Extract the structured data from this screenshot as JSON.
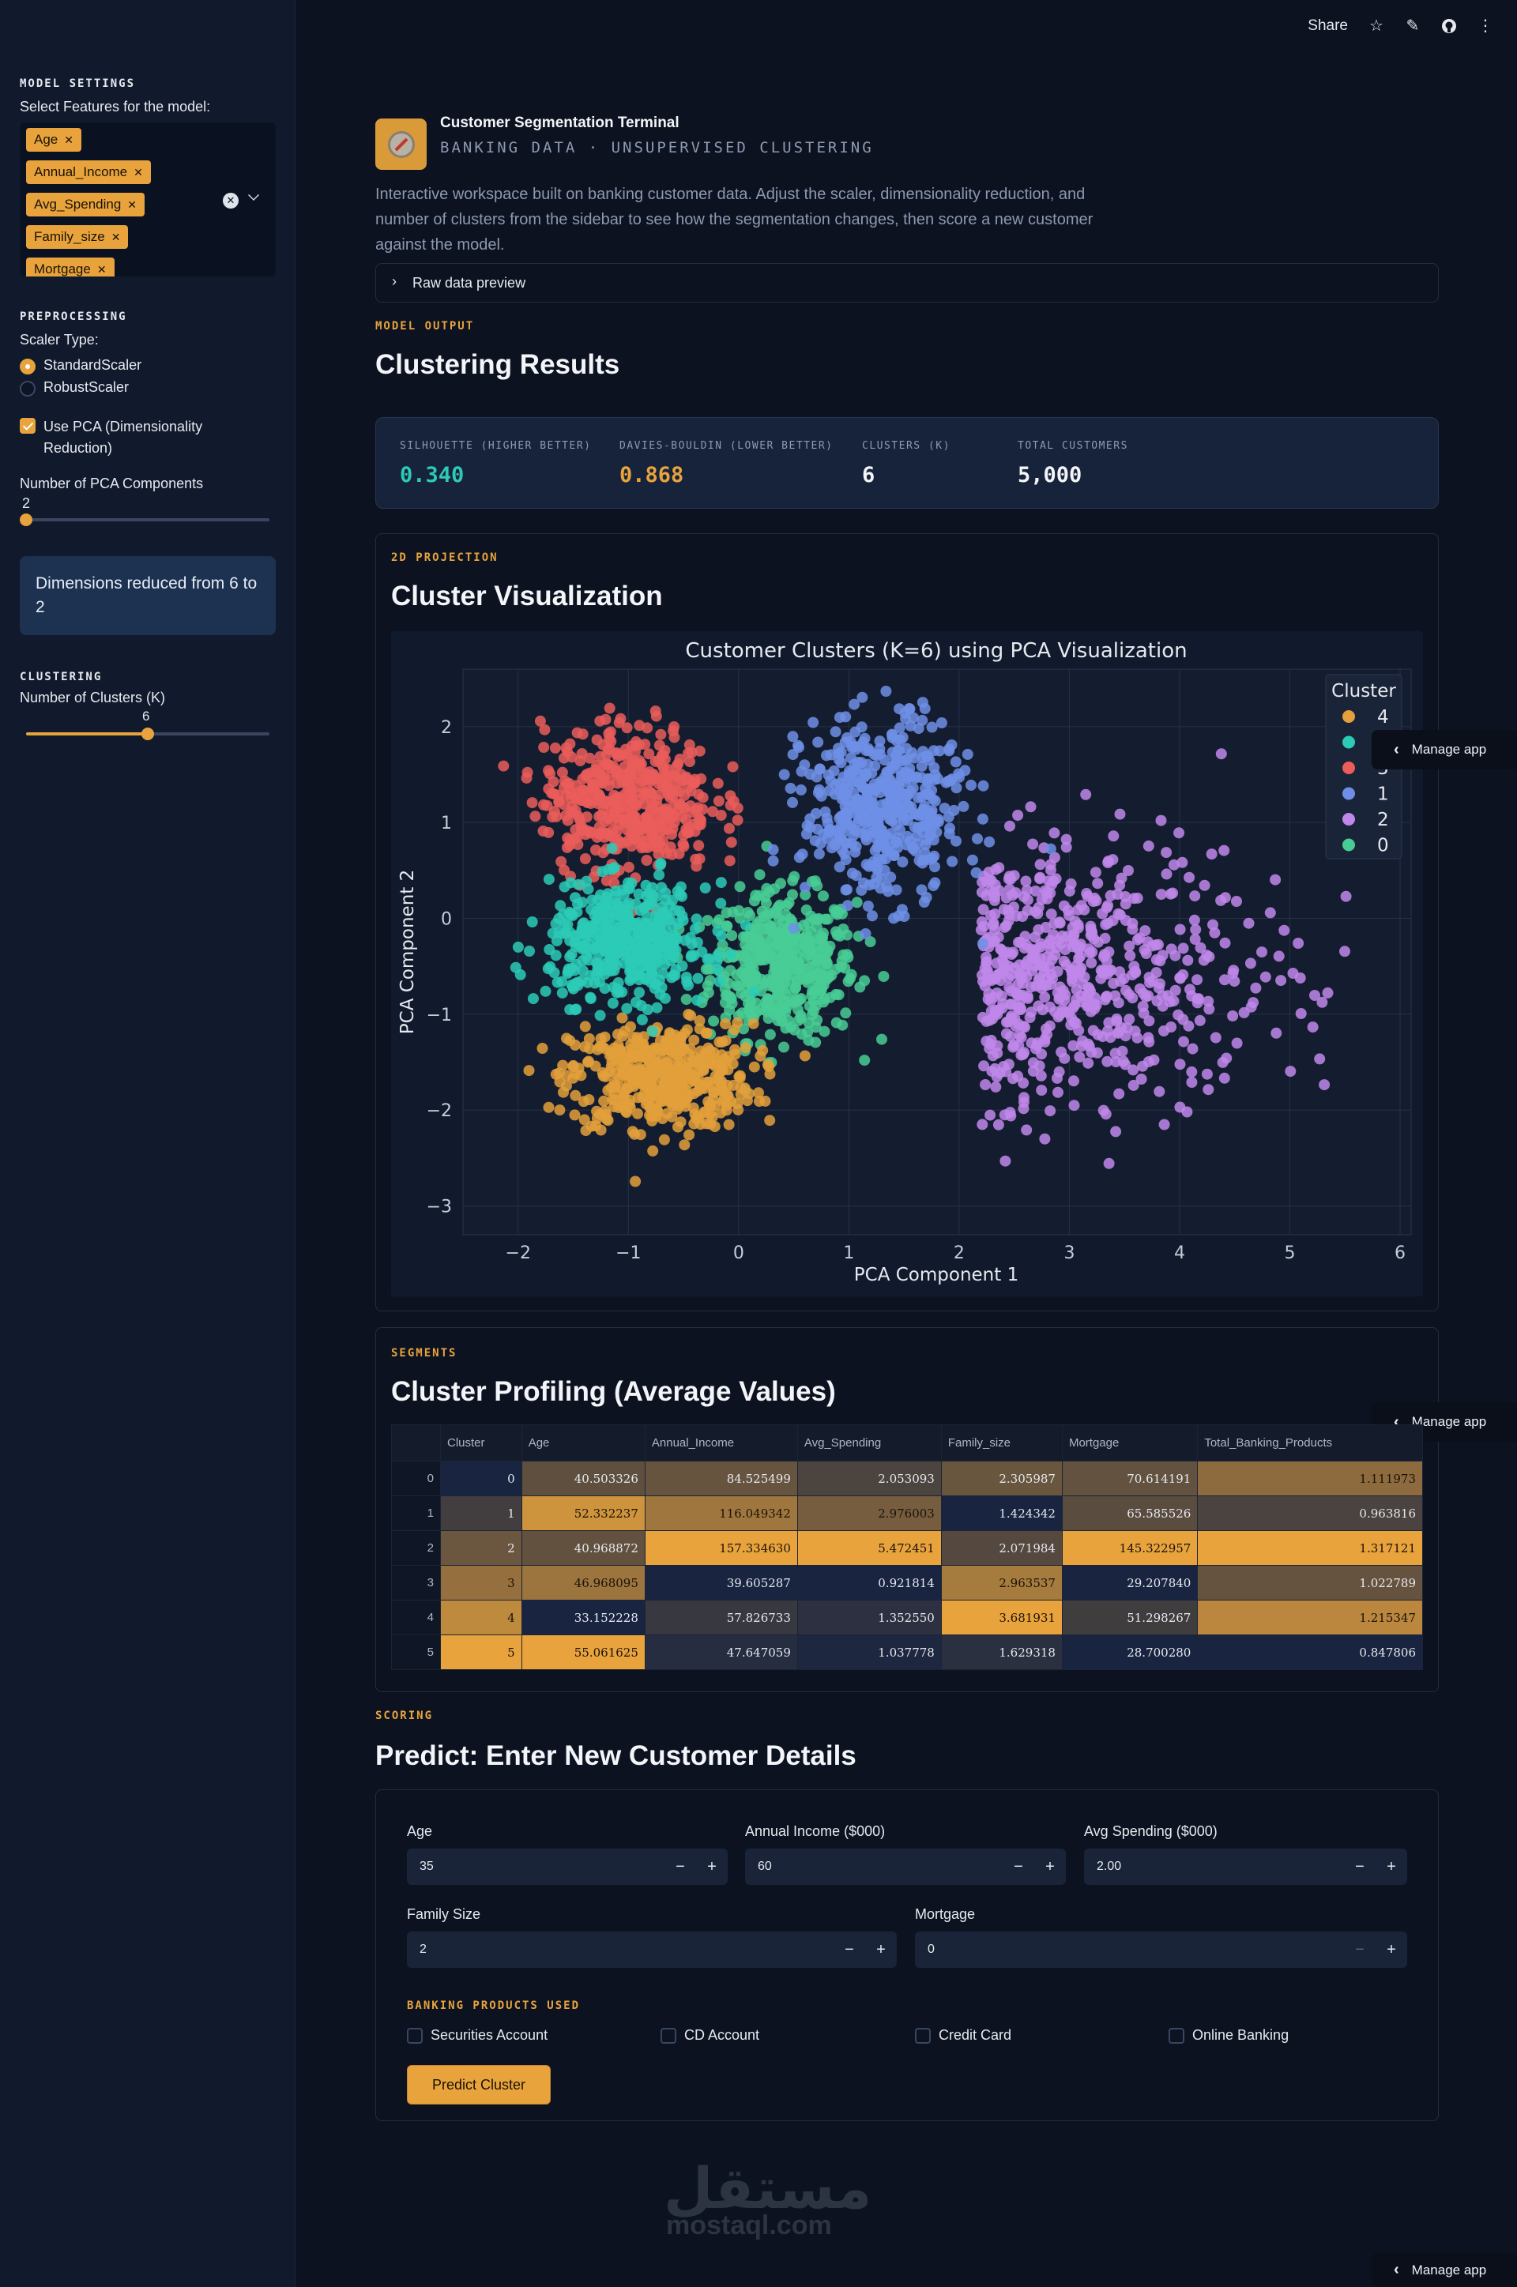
{
  "toolbar": {
    "share_label": "Share"
  },
  "manage_app_label": "Manage app",
  "sidebar": {
    "model_settings_heading": "MODEL SETTINGS",
    "features_label": "Select Features for the model:",
    "selected_features": [
      "Age",
      "Annual_Income",
      "Avg_Spending",
      "Family_size",
      "Mortgage"
    ],
    "preprocessing_heading": "PREPROCESSING",
    "scaler_label": "Scaler Type:",
    "scaler_options": [
      "StandardScaler",
      "RobustScaler"
    ],
    "scaler_selected": "StandardScaler",
    "pca_checkbox_label": "Use PCA (Dimensionality Reduction)",
    "pca_checked": true,
    "pca_components_label": "Number of PCA Components",
    "pca_components_value": "2",
    "pca_slider_fraction": 0.0,
    "pca_info": "Dimensions reduced from 6 to 2",
    "clustering_heading": "CLUSTERING",
    "clusters_label": "Number of Clusters (K)",
    "clusters_value": "6",
    "clusters_slider_fraction": 0.5
  },
  "header": {
    "title": "Customer Segmentation Terminal",
    "subtitle": "BANKING DATA · UNSUPERVISED CLUSTERING",
    "description": "Interactive workspace built on banking customer data. Adjust the scaler, dimensionality reduction, and number of clusters from the sidebar to see how the segmentation changes, then score a new customer against the model.",
    "raw_preview_label": "Raw data preview"
  },
  "results": {
    "eyebrow": "MODEL OUTPUT",
    "title": "Clustering Results",
    "metrics": [
      {
        "label": "SILHOUETTE (HIGHER BETTER)",
        "value": "0.340",
        "color": "#2ec9b7"
      },
      {
        "label": "DAVIES-BOULDIN (LOWER BETTER)",
        "value": "0.868",
        "color": "#e8a33d"
      },
      {
        "label": "CLUSTERS (K)",
        "value": "6",
        "color": "#f3f5f8"
      },
      {
        "label": "TOTAL CUSTOMERS",
        "value": "5,000",
        "color": "#f3f5f8"
      }
    ]
  },
  "viz": {
    "eyebrow": "2D PROJECTION",
    "title": "Cluster Visualization"
  },
  "chart_data": {
    "type": "scatter",
    "title": "Customer Clusters (K=6) using PCA Visualization",
    "xlabel": "PCA Component 1",
    "ylabel": "PCA Component 2",
    "xlim": [
      -2.5,
      6.1
    ],
    "ylim": [
      -3.3,
      2.6
    ],
    "xticks": [
      "−2",
      "−1",
      "0",
      "1",
      "2",
      "3",
      "4",
      "5",
      "6"
    ],
    "yticks": [
      "2",
      "1",
      "0",
      "−1",
      "−2",
      "−3"
    ],
    "grid": true,
    "legend_title": "Cluster",
    "legend_placement": "top-right",
    "series": [
      {
        "name": "4",
        "color": "#e3a03b",
        "center": [
          -0.7,
          -1.65
        ],
        "spread": [
          0.75,
          0.32
        ]
      },
      {
        "name": "5",
        "color": "#2ccbb7",
        "center": [
          -1.0,
          -0.25
        ],
        "spread": [
          0.65,
          0.35
        ]
      },
      {
        "name": "3",
        "color": "#ea5d5a",
        "center": [
          -1.0,
          1.25
        ],
        "spread": [
          0.7,
          0.45
        ]
      },
      {
        "name": "1",
        "color": "#6f8fe6",
        "center": [
          1.3,
          1.15
        ],
        "spread": [
          0.65,
          0.55
        ]
      },
      {
        "name": "2",
        "color": "#c087ea",
        "center": [
          2.8,
          -0.6
        ],
        "spread": [
          1.0,
          0.65
        ]
      },
      {
        "name": "0",
        "color": "#48cc95",
        "center": [
          0.4,
          -0.5
        ],
        "spread": [
          0.6,
          0.45
        ]
      }
    ]
  },
  "profiling": {
    "eyebrow": "SEGMENTS",
    "title": "Cluster Profiling (Average Values)",
    "columns": [
      "",
      "Cluster",
      "Age",
      "Annual_Income",
      "Avg_Spending",
      "Family_size",
      "Mortgage",
      "Total_Banking_Products"
    ],
    "rows": [
      [
        "0",
        "0",
        "40.503326",
        "84.525499",
        "2.053093",
        "2.305987",
        "70.614191",
        "1.111973"
      ],
      [
        "1",
        "1",
        "52.332237",
        "116.049342",
        "2.976003",
        "1.424342",
        "65.585526",
        "0.963816"
      ],
      [
        "2",
        "2",
        "40.968872",
        "157.334630",
        "5.472451",
        "2.071984",
        "145.322957",
        "1.317121"
      ],
      [
        "3",
        "3",
        "46.968095",
        "39.605287",
        "0.921814",
        "2.963537",
        "29.207840",
        "1.022789"
      ],
      [
        "4",
        "4",
        "33.152228",
        "57.826733",
        "1.352550",
        "3.681931",
        "51.298267",
        "1.215347"
      ],
      [
        "5",
        "5",
        "55.061625",
        "47.647059",
        "1.037778",
        "1.629318",
        "28.700280",
        "0.847806"
      ]
    ]
  },
  "predict": {
    "eyebrow": "SCORING",
    "title": "Predict: Enter New Customer Details",
    "fields": [
      {
        "label": "Age",
        "value": "35"
      },
      {
        "label": "Annual Income ($000)",
        "value": "60"
      },
      {
        "label": "Avg Spending ($000)",
        "value": "2.00"
      },
      {
        "label": "Family Size",
        "value": "2"
      },
      {
        "label": "Mortgage",
        "value": "0"
      }
    ],
    "products_heading": "BANKING PRODUCTS USED",
    "products": [
      "Securities Account",
      "CD Account",
      "Credit Card",
      "Online Banking"
    ],
    "button_label": "Predict Cluster"
  },
  "watermark": {
    "arabic": "مستقل",
    "latin": "mostaql.com"
  }
}
